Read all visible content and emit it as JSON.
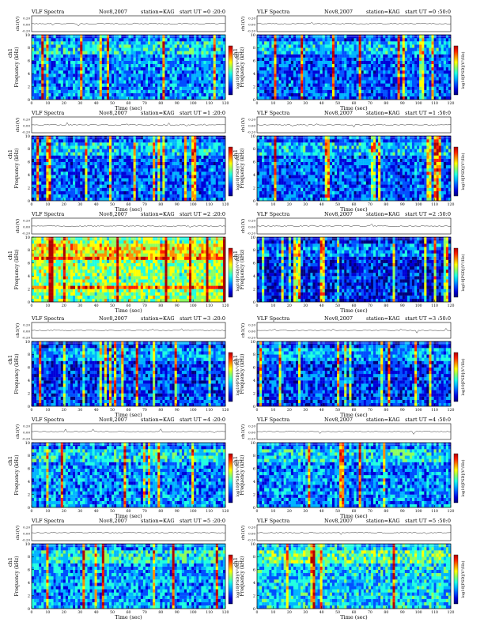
{
  "colors": {
    "background": "#ffffff",
    "spectrogram_low": "#0b1a8f",
    "spectrogram_high": "#d41010",
    "colormap": [
      "#00007a",
      "#0000d8",
      "#0050ff",
      "#00b4ff",
      "#20ffe0",
      "#8cff60",
      "#ffff00",
      "#ff9000",
      "#ff2000",
      "#b00000"
    ]
  },
  "chart_data": [
    {
      "type": "heatmap",
      "panel": 1,
      "title": "VLF Spectra",
      "date": "Nov8,2007",
      "station": "station=KAG",
      "start": "start  UT =0 :20:0",
      "ylabel_top": "ch1(V)",
      "top_ticks": [
        "0.20",
        "0.00",
        "-0.20"
      ],
      "ylabel_main": "Frequency  (kHz)",
      "ylabel_ch": "ch1",
      "yticks": [
        "0",
        "2",
        "4",
        "6",
        "8",
        "10"
      ],
      "xticks": [
        "0",
        "10",
        "20",
        "30",
        "40",
        "50",
        "60",
        "70",
        "80",
        "90",
        "100",
        "110",
        "120"
      ],
      "xlabel": "Time  (sec)",
      "colorbar_label": "log10[PSD](V²/Hz)",
      "xlim": [
        0,
        120
      ],
      "ylim": [
        0,
        10
      ]
    },
    {
      "type": "heatmap",
      "panel": 2,
      "title": "VLF Spectra",
      "date": "Nov8,2007",
      "station": "station=KAG",
      "start": "start  UT =0 :50:0",
      "ylabel_top": "ch1(V)",
      "top_ticks": [
        "0.20",
        "0.00",
        "-0.20"
      ],
      "ylabel_main": "Frequency  (kHz)",
      "ylabel_ch": "ch1",
      "yticks": [
        "0",
        "2",
        "4",
        "6",
        "8",
        "10"
      ],
      "xticks": [
        "0",
        "10",
        "20",
        "30",
        "40",
        "50",
        "60",
        "70",
        "80",
        "90",
        "100",
        "110",
        "120"
      ],
      "xlabel": "Time  (sec)",
      "colorbar_label": "log10[PSD](V²/Hz)",
      "xlim": [
        0,
        120
      ],
      "ylim": [
        0,
        10
      ]
    },
    {
      "type": "heatmap",
      "panel": 3,
      "title": "VLF Spectra",
      "date": "Nov8,2007",
      "station": "station=KAG",
      "start": "start  UT =1 :20:0",
      "ylabel_top": "ch1(V)",
      "top_ticks": [
        "0.20",
        "0.00",
        "-0.20"
      ],
      "ylabel_main": "Frequency  (kHz)",
      "ylabel_ch": "ch1",
      "yticks": [
        "0",
        "2",
        "4",
        "6",
        "8",
        "10"
      ],
      "xticks": [
        "0",
        "10",
        "20",
        "30",
        "40",
        "50",
        "60",
        "70",
        "80",
        "90",
        "100",
        "110",
        "120"
      ],
      "xlabel": "Time  (sec)",
      "colorbar_label": "log10[PSD](V²/Hz)",
      "xlim": [
        0,
        120
      ],
      "ylim": [
        0,
        10
      ]
    },
    {
      "type": "heatmap",
      "panel": 4,
      "title": "VLF Spectra",
      "date": "Nov8,2007",
      "station": "station=KAG",
      "start": "start  UT =1 :50:0",
      "ylabel_top": "ch1(V)",
      "top_ticks": [
        "0.20",
        "0.00",
        "-0.20"
      ],
      "ylabel_main": "Frequency  (kHz)",
      "ylabel_ch": "ch1",
      "yticks": [
        "0",
        "2",
        "4",
        "6",
        "8",
        "10"
      ],
      "xticks": [
        "0",
        "10",
        "20",
        "30",
        "40",
        "50",
        "60",
        "70",
        "80",
        "90",
        "100",
        "110",
        "120"
      ],
      "xlabel": "Time  (sec)",
      "colorbar_label": "log10[PSD](V²/Hz)",
      "xlim": [
        0,
        120
      ],
      "ylim": [
        0,
        10
      ]
    },
    {
      "type": "heatmap",
      "panel": 5,
      "title": "VLF Spectra",
      "date": "Nov8,2007",
      "station": "station=KAG",
      "start": "start  UT =2 :20:0",
      "ylabel_top": "ch1(V)",
      "top_ticks": [
        "0.20",
        "0.00",
        "-0.20"
      ],
      "ylabel_main": "Frequency  (kHz)",
      "ylabel_ch": "ch1",
      "yticks": [
        "0",
        "2",
        "4",
        "6",
        "8",
        "10"
      ],
      "xticks": [
        "0",
        "10",
        "20",
        "30",
        "40",
        "50",
        "60",
        "70",
        "80",
        "90",
        "100",
        "110",
        "120"
      ],
      "xlabel": "Time  (sec)",
      "colorbar_label": "log10[PSD](V²/Hz)",
      "xlim": [
        0,
        120
      ],
      "ylim": [
        0,
        10
      ]
    },
    {
      "type": "heatmap",
      "panel": 6,
      "title": "VLF Spectra",
      "date": "Nov8,2007",
      "station": "station=KAG",
      "start": "start  UT =2 :50:0",
      "ylabel_top": "ch1(V)",
      "top_ticks": [
        "0.20",
        "0.00",
        "-0.20"
      ],
      "ylabel_main": "Frequency  (kHz)",
      "ylabel_ch": "ch1",
      "yticks": [
        "0",
        "2",
        "4",
        "6",
        "8",
        "10"
      ],
      "xticks": [
        "0",
        "10",
        "20",
        "30",
        "40",
        "50",
        "60",
        "70",
        "80",
        "90",
        "100",
        "110",
        "120"
      ],
      "xlabel": "Time  (sec)",
      "colorbar_label": "log10[PSD](V²/Hz)",
      "xlim": [
        0,
        120
      ],
      "ylim": [
        0,
        10
      ]
    },
    {
      "type": "heatmap",
      "panel": 7,
      "title": "VLF Spectra",
      "date": "Nov8,2007",
      "station": "station=KAG",
      "start": "start  UT =3 :20:0",
      "ylabel_top": "ch1(V)",
      "top_ticks": [
        "0.20",
        "0.00",
        "-0.20"
      ],
      "ylabel_main": "Frequency  (kHz)",
      "ylabel_ch": "ch1",
      "yticks": [
        "0",
        "2",
        "4",
        "6",
        "8",
        "10"
      ],
      "xticks": [
        "0",
        "10",
        "20",
        "30",
        "40",
        "50",
        "60",
        "70",
        "80",
        "90",
        "100",
        "110",
        "120"
      ],
      "xlabel": "Time  (sec)",
      "colorbar_label": "log10[PSD](V²/Hz)",
      "xlim": [
        0,
        120
      ],
      "ylim": [
        0,
        10
      ]
    },
    {
      "type": "heatmap",
      "panel": 8,
      "title": "VLF Spectra",
      "date": "Nov8,2007",
      "station": "station=KAG",
      "start": "start  UT =3 :50:0",
      "ylabel_top": "ch1(V)",
      "top_ticks": [
        "0.20",
        "0.00",
        "-0.20"
      ],
      "ylabel_main": "Frequency  (kHz)",
      "ylabel_ch": "ch1",
      "yticks": [
        "0",
        "2",
        "4",
        "6",
        "8",
        "10"
      ],
      "xticks": [
        "0",
        "10",
        "20",
        "30",
        "40",
        "50",
        "60",
        "70",
        "80",
        "90",
        "100",
        "110",
        "120"
      ],
      "xlabel": "Time  (sec)",
      "colorbar_label": "log10[PSD](V²/Hz)",
      "xlim": [
        0,
        120
      ],
      "ylim": [
        0,
        10
      ]
    },
    {
      "type": "heatmap",
      "panel": 9,
      "title": "VLF Spectra",
      "date": "Nov8,2007",
      "station": "station=KAG",
      "start": "start  UT =4 :20:0",
      "ylabel_top": "ch1(V)",
      "top_ticks": [
        "0.20",
        "0.00",
        "-0.20"
      ],
      "ylabel_main": "Frequency  (kHz)",
      "ylabel_ch": "ch1",
      "yticks": [
        "0",
        "2",
        "4",
        "6",
        "8",
        "10"
      ],
      "xticks": [
        "0",
        "10",
        "20",
        "30",
        "40",
        "50",
        "60",
        "70",
        "80",
        "90",
        "100",
        "110",
        "120"
      ],
      "xlabel": "Time  (sec)",
      "colorbar_label": "log10[PSD](V²/Hz)",
      "xlim": [
        0,
        120
      ],
      "ylim": [
        0,
        10
      ]
    },
    {
      "type": "heatmap",
      "panel": 10,
      "title": "VLF Spectra",
      "date": "Nov8,2007",
      "station": "station=KAG",
      "start": "start  UT =4 :50:0",
      "ylabel_top": "ch1(V)",
      "top_ticks": [
        "0.20",
        "0.00",
        "-0.20"
      ],
      "ylabel_main": "Frequency  (kHz)",
      "ylabel_ch": "ch1",
      "yticks": [
        "0",
        "2",
        "4",
        "6",
        "8",
        "10"
      ],
      "xticks": [
        "0",
        "10",
        "20",
        "30",
        "40",
        "50",
        "60",
        "70",
        "80",
        "90",
        "100",
        "110",
        "120"
      ],
      "xlabel": "Time  (sec)",
      "colorbar_label": "log10[PSD](V²/Hz)",
      "xlim": [
        0,
        120
      ],
      "ylim": [
        0,
        10
      ]
    },
    {
      "type": "heatmap",
      "panel": 11,
      "title": "VLF Spectra",
      "date": "Nov8,2007",
      "station": "station=KAG",
      "start": "start  UT =5 :20:0",
      "ylabel_top": "ch1(V)",
      "top_ticks": [
        "0.20",
        "0.00",
        "-0.20"
      ],
      "ylabel_main": "Frequency  (kHz)",
      "ylabel_ch": "ch1",
      "yticks": [
        "0",
        "2",
        "4",
        "6",
        "8",
        "10"
      ],
      "xticks": [
        "0",
        "10",
        "20",
        "30",
        "40",
        "50",
        "60",
        "70",
        "80",
        "90",
        "100",
        "110",
        "120"
      ],
      "xlabel": "Time  (sec)",
      "colorbar_label": "log10[PSD](V²/Hz)",
      "xlim": [
        0,
        120
      ],
      "ylim": [
        0,
        10
      ]
    },
    {
      "type": "heatmap",
      "panel": 12,
      "title": "VLF Spectra",
      "date": "Nov8,2007",
      "station": "station=KAG",
      "start": "start  UT =5 :50:0",
      "ylabel_top": "ch1(V)",
      "top_ticks": [
        "0.20",
        "0.00",
        "-0.20"
      ],
      "ylabel_main": "Frequency  (kHz)",
      "ylabel_ch": "ch1",
      "yticks": [
        "0",
        "2",
        "4",
        "6",
        "8",
        "10"
      ],
      "xticks": [
        "0",
        "10",
        "20",
        "30",
        "40",
        "50",
        "60",
        "70",
        "80",
        "90",
        "100",
        "110",
        "120"
      ],
      "xlabel": "Time  (sec)",
      "colorbar_label": "log10[PSD](V²/Hz)",
      "xlim": [
        0,
        120
      ],
      "ylim": [
        0,
        10
      ]
    }
  ]
}
